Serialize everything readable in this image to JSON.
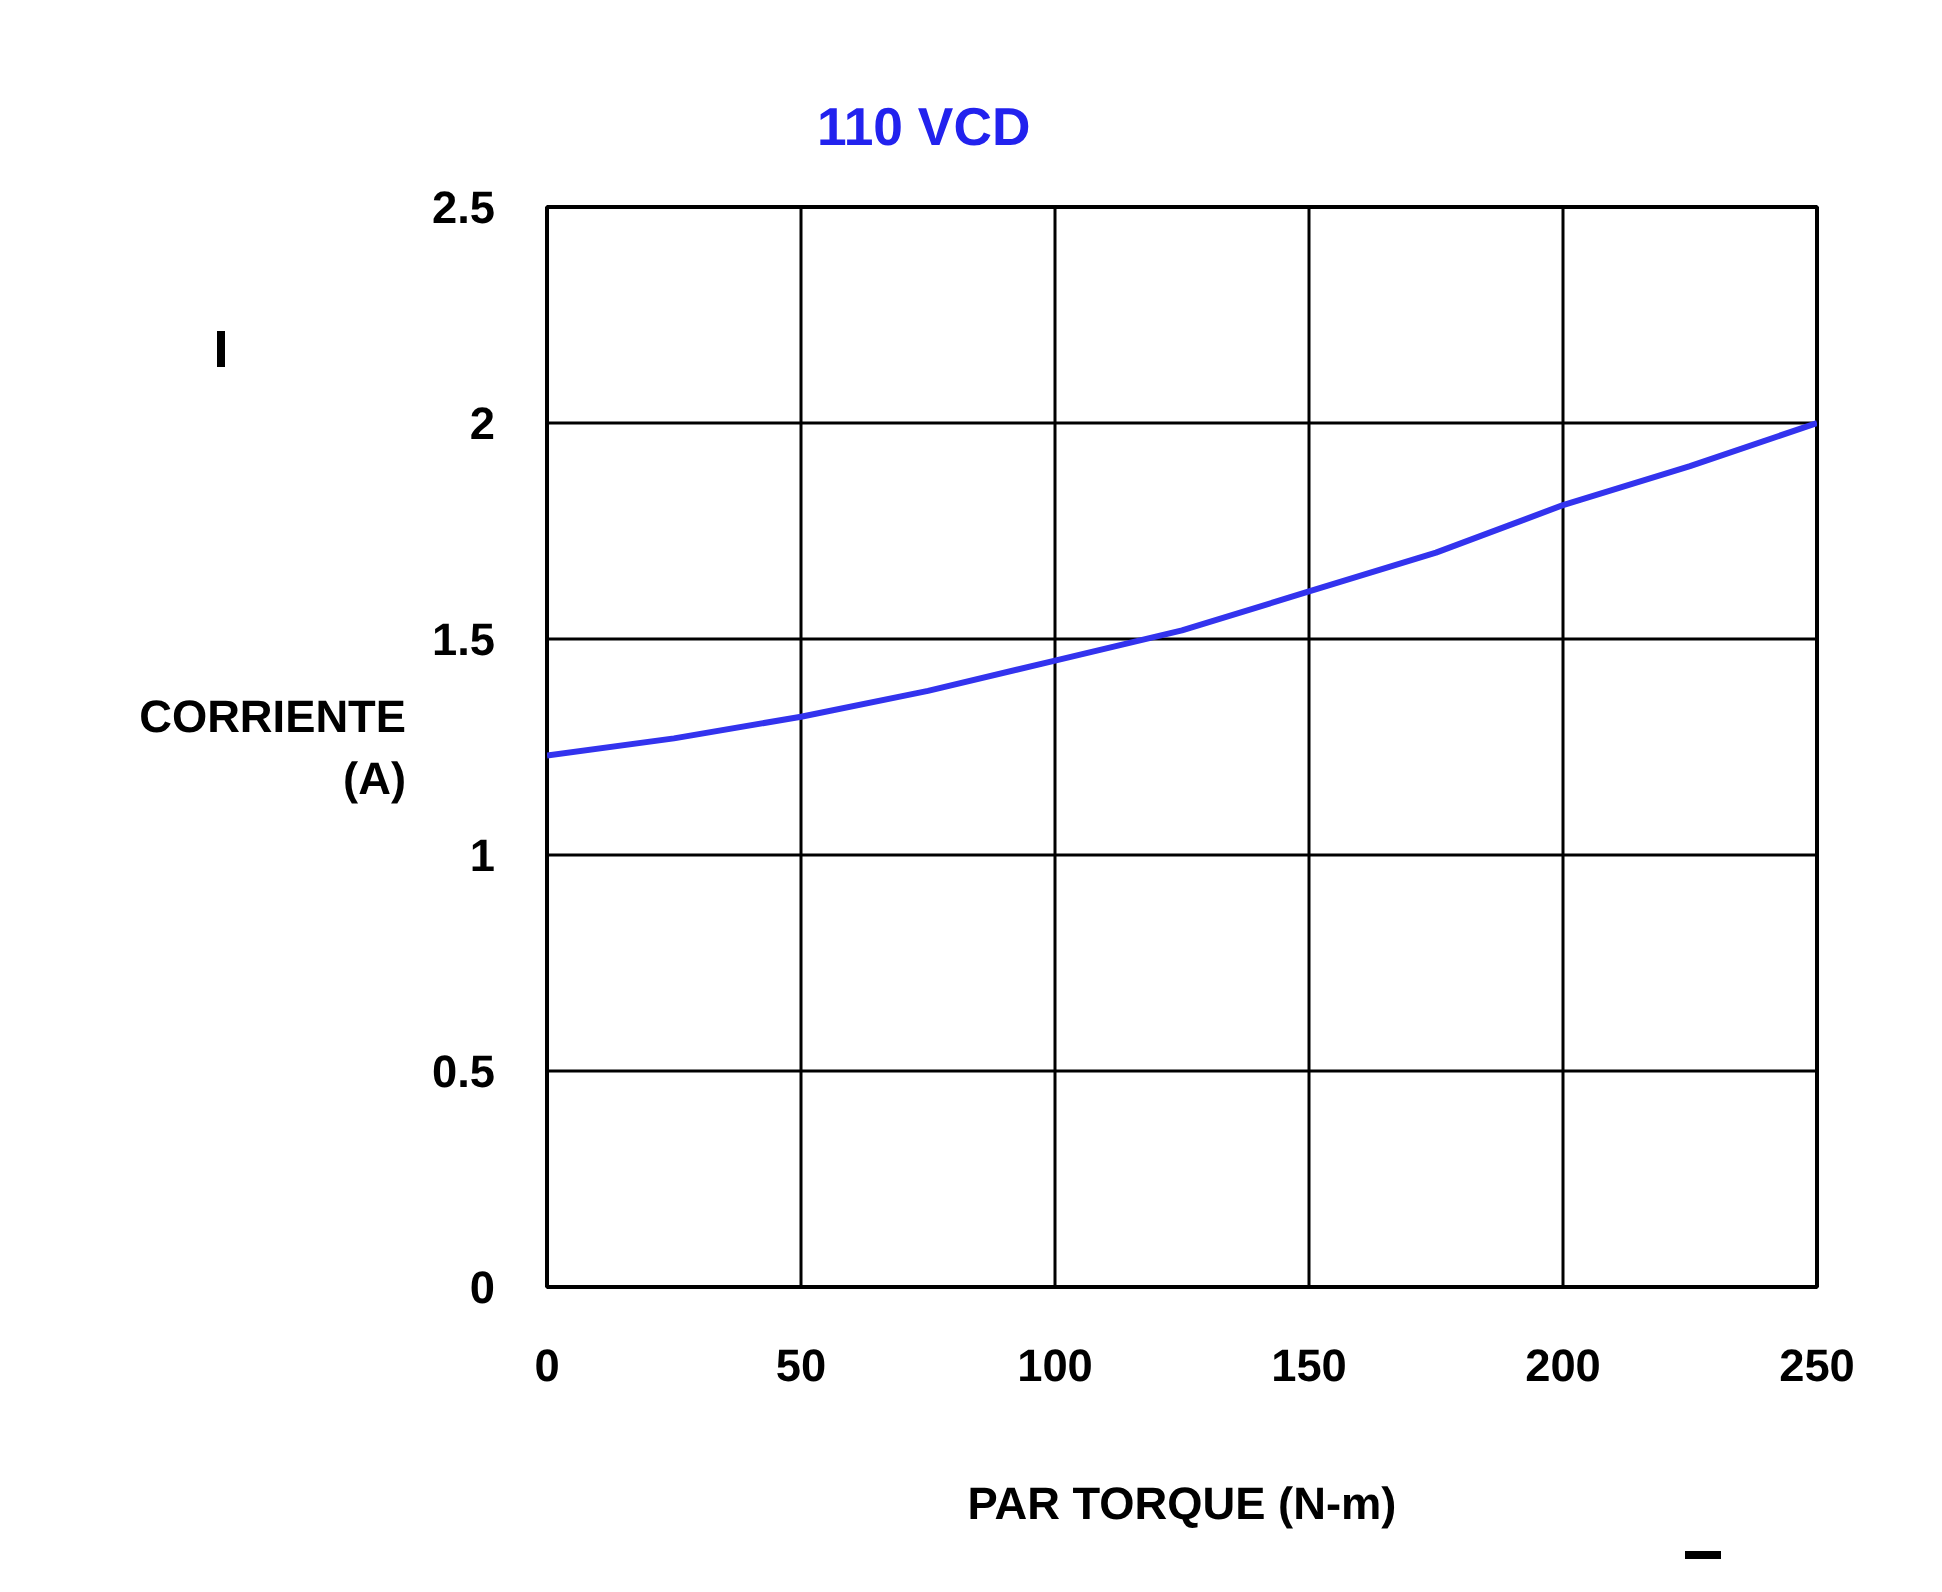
{
  "chart_data": {
    "type": "line",
    "title": "110 VCD",
    "xlabel": "PAR TORQUE (N-m)",
    "ylabel": "CORRIENTE (A)",
    "x": [
      0,
      25,
      50,
      75,
      100,
      125,
      150,
      175,
      200,
      225,
      250
    ],
    "series": [
      {
        "color": "#3333ee",
        "values": [
          1.23,
          1.27,
          1.32,
          1.38,
          1.45,
          1.52,
          1.61,
          1.7,
          1.81,
          1.9,
          2.0
        ]
      }
    ],
    "xlim": [
      0,
      250
    ],
    "ylim": [
      0,
      2.5
    ],
    "xticks": [
      0,
      50,
      100,
      150,
      200,
      250
    ],
    "yticks": [
      0,
      0.5,
      1,
      1.5,
      2,
      2.5
    ],
    "grid": true,
    "marker": "none",
    "line_style": "solid"
  }
}
